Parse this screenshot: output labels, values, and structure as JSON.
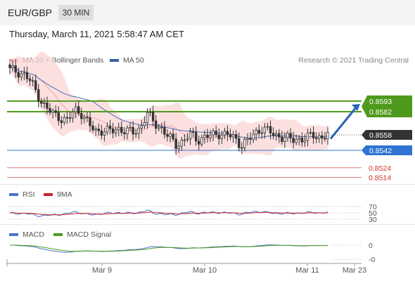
{
  "header": {
    "symbol": "EUR/GBP",
    "timeframe": "30 MIN"
  },
  "datetime": "Thursday, March 11, 2021 5:58:47 AM CET",
  "legend": {
    "ma20": {
      "label": "MA 20 + Bollinger Bands",
      "color": "#f08c8c"
    },
    "ma50": {
      "label": "MA 50",
      "color": "#3a5fa8"
    },
    "research": "Research © 2021 Trading Central"
  },
  "price_levels": [
    {
      "value": "0.8593",
      "kind": "target",
      "color": "#4f9a1c"
    },
    {
      "value": "0.8582",
      "kind": "target",
      "color": "#4f9a1c"
    },
    {
      "value": "0.8558",
      "kind": "current",
      "color": "#333333"
    },
    {
      "value": "0.8542",
      "kind": "pivot",
      "color": "#2f74d0"
    },
    {
      "value": "0.8524",
      "kind": "support",
      "color": "#d0342c"
    },
    {
      "value": "0.8514",
      "kind": "support",
      "color": "#d0342c"
    }
  ],
  "rsi": {
    "label": "RSI",
    "ma_label": "9MA",
    "color": "#4a73c9",
    "ma_color": "#c8202a",
    "levels": [
      "70",
      "50",
      "30"
    ]
  },
  "macd": {
    "label": "MACD",
    "signal_label": "MACD Signal",
    "color": "#4a73c9",
    "signal_color": "#4f9a1c",
    "levels": [
      "0",
      "-0"
    ]
  },
  "xaxis": {
    "labels": [
      "Mar 9",
      "Mar 10",
      "Mar 11",
      "Mar 23"
    ]
  },
  "chart_data": {
    "type": "candlestick",
    "x_labels": [
      "Mar 9",
      "Mar 10",
      "Mar 11",
      "Mar 23"
    ],
    "y_axis_labels": [
      "0.8593",
      "0.8582",
      "0.8558",
      "0.8542",
      "0.8524",
      "0.8514"
    ],
    "close_path": [
      0.8625,
      0.8624,
      0.862,
      0.8612,
      0.8598,
      0.8585,
      0.858,
      0.8576,
      0.8572,
      0.8585,
      0.858,
      0.8567,
      0.8562,
      0.8563,
      0.8561,
      0.8565,
      0.8562,
      0.856,
      0.8565,
      0.858,
      0.857,
      0.8565,
      0.8555,
      0.8548,
      0.8552,
      0.8558,
      0.8553,
      0.8556,
      0.8557,
      0.856,
      0.8558,
      0.8555,
      0.8548,
      0.8552,
      0.856,
      0.8566,
      0.856,
      0.8557,
      0.8556,
      0.8552,
      0.8554,
      0.8555,
      0.8557,
      0.8556,
      0.8558
    ],
    "forecast": {
      "from": 0.8554,
      "to": 0.859
    }
  }
}
